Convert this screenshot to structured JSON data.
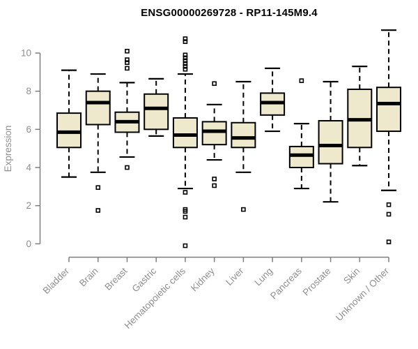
{
  "title": "ENSG00000269728 - RP11-145M9.4",
  "colors": {
    "box_fill": "#EEE8CD",
    "box_stroke": "#000000",
    "median": "#000000",
    "whisker": "#000000",
    "outlier": "#000000",
    "axis_line": "#7E7E7E",
    "tick_label": "#8F8F8F",
    "title_color": "#000000",
    "background": "#FFFFFF"
  },
  "chart_data": {
    "type": "boxplot",
    "title": "ENSG00000269728 - RP11-145M9.4",
    "xlabel": "",
    "ylabel": "Expression",
    "ylim": [
      -0.5,
      11.3
    ],
    "yticks": [
      0,
      2,
      4,
      6,
      8,
      10
    ],
    "grid": false,
    "legend": "none",
    "categories": [
      "Bladder",
      "Brain",
      "Breast",
      "Gastric",
      "Hematopoietic cells",
      "Kidney",
      "Liver",
      "Lung",
      "Pancreas",
      "Prostate",
      "Skin",
      "Unknown / Other"
    ],
    "series": [
      {
        "name": "Bladder",
        "whisker_low": 3.5,
        "q1": 5.05,
        "median": 5.85,
        "q3": 6.85,
        "whisker_high": 9.1,
        "outliers": []
      },
      {
        "name": "Brain",
        "whisker_low": 3.75,
        "q1": 6.25,
        "median": 7.4,
        "q3": 8.0,
        "whisker_high": 8.9,
        "outliers": [
          2.95,
          1.75
        ]
      },
      {
        "name": "Breast",
        "whisker_low": 4.55,
        "q1": 5.85,
        "median": 6.4,
        "q3": 6.9,
        "whisker_high": 8.45,
        "outliers": [
          10.1,
          9.65,
          9.5,
          9.2,
          4.0
        ]
      },
      {
        "name": "Gastric",
        "whisker_low": 5.65,
        "q1": 6.0,
        "median": 7.1,
        "q3": 7.85,
        "whisker_high": 8.65,
        "outliers": []
      },
      {
        "name": "Hematopoietic cells",
        "whisker_low": 2.9,
        "q1": 5.05,
        "median": 5.7,
        "q3": 6.6,
        "whisker_high": 8.9,
        "outliers": [
          10.75,
          10.6,
          9.9,
          9.75,
          9.6,
          9.45,
          9.3,
          9.15,
          2.7,
          1.8,
          1.7,
          1.4,
          -0.1
        ]
      },
      {
        "name": "Kidney",
        "whisker_low": 4.4,
        "q1": 5.2,
        "median": 5.9,
        "q3": 6.4,
        "whisker_high": 7.3,
        "outliers": [
          8.4,
          3.4,
          3.05
        ]
      },
      {
        "name": "Liver",
        "whisker_low": 3.75,
        "q1": 5.05,
        "median": 5.55,
        "q3": 6.35,
        "whisker_high": 8.5,
        "outliers": [
          1.8
        ]
      },
      {
        "name": "Lung",
        "whisker_low": 5.9,
        "q1": 6.75,
        "median": 7.4,
        "q3": 7.9,
        "whisker_high": 9.2,
        "outliers": []
      },
      {
        "name": "Pancreas",
        "whisker_low": 2.9,
        "q1": 4.0,
        "median": 4.65,
        "q3": 5.1,
        "whisker_high": 6.3,
        "outliers": [
          8.55
        ]
      },
      {
        "name": "Prostate",
        "whisker_low": 2.2,
        "q1": 4.2,
        "median": 5.15,
        "q3": 6.45,
        "whisker_high": 8.5,
        "outliers": []
      },
      {
        "name": "Skin",
        "whisker_low": 4.1,
        "q1": 5.05,
        "median": 6.5,
        "q3": 8.1,
        "whisker_high": 9.3,
        "outliers": []
      },
      {
        "name": "Unknown / Other",
        "whisker_low": 2.8,
        "q1": 5.9,
        "median": 7.35,
        "q3": 8.2,
        "whisker_high": 11.2,
        "outliers": [
          2.05,
          1.55,
          0.1
        ]
      }
    ]
  }
}
